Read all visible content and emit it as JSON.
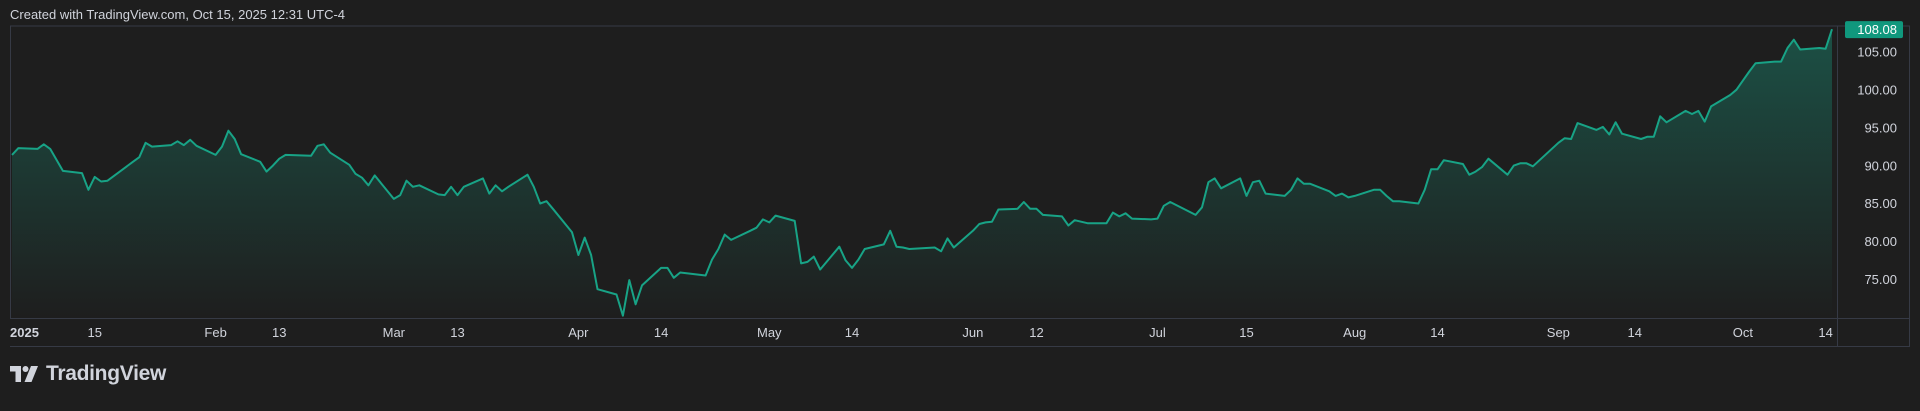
{
  "header": {
    "attribution": "Created with TradingView.com, Oct 15, 2025 12:31 UTC-4"
  },
  "footer": {
    "brand": "TradingView"
  },
  "colors": {
    "background": "#1e1e1e",
    "line": "#18a386",
    "price_badge": "#10987d",
    "axis_text": "#d1d4dc",
    "border": "#363a45"
  },
  "chart_data": {
    "type": "area",
    "last_price_label": "108.08",
    "ylim": [
      70,
      108.5
    ],
    "y_ticks": [
      {
        "value": 75,
        "label": "75.00"
      },
      {
        "value": 80,
        "label": "80.00"
      },
      {
        "value": 85,
        "label": "85.00"
      },
      {
        "value": 90,
        "label": "90.00"
      },
      {
        "value": 95,
        "label": "95.00"
      },
      {
        "value": 100,
        "label": "100.00"
      },
      {
        "value": 105,
        "label": "105.00"
      }
    ],
    "x_ticks": [
      {
        "date": "2025-01-02",
        "label": "2025",
        "bold": true
      },
      {
        "date": "2025-01-15",
        "label": "15"
      },
      {
        "date": "2025-02-03",
        "label": "Feb"
      },
      {
        "date": "2025-02-13",
        "label": "13"
      },
      {
        "date": "2025-03-03",
        "label": "Mar"
      },
      {
        "date": "2025-03-13",
        "label": "13"
      },
      {
        "date": "2025-04-01",
        "label": "Apr"
      },
      {
        "date": "2025-04-14",
        "label": "14"
      },
      {
        "date": "2025-05-01",
        "label": "May"
      },
      {
        "date": "2025-05-14",
        "label": "14"
      },
      {
        "date": "2025-06-02",
        "label": "Jun"
      },
      {
        "date": "2025-06-12",
        "label": "12"
      },
      {
        "date": "2025-07-01",
        "label": "Jul"
      },
      {
        "date": "2025-07-15",
        "label": "15"
      },
      {
        "date": "2025-08-01",
        "label": "Aug"
      },
      {
        "date": "2025-08-14",
        "label": "14"
      },
      {
        "date": "2025-09-02",
        "label": "Sep"
      },
      {
        "date": "2025-09-14",
        "label": "14"
      },
      {
        "date": "2025-10-01",
        "label": "Oct"
      },
      {
        "date": "2025-10-14",
        "label": "14"
      }
    ],
    "series": [
      {
        "points": [
          [
            "2025-01-02",
            91.5
          ],
          [
            "2025-01-03",
            92.4
          ],
          [
            "2025-01-06",
            92.3
          ],
          [
            "2025-01-07",
            92.9
          ],
          [
            "2025-01-08",
            92.3
          ],
          [
            "2025-01-10",
            89.4
          ],
          [
            "2025-01-13",
            89.1
          ],
          [
            "2025-01-14",
            86.9
          ],
          [
            "2025-01-15",
            88.6
          ],
          [
            "2025-01-16",
            88.0
          ],
          [
            "2025-01-17",
            88.1
          ],
          [
            "2025-01-21",
            90.6
          ],
          [
            "2025-01-22",
            91.2
          ],
          [
            "2025-01-23",
            93.1
          ],
          [
            "2025-01-24",
            92.6
          ],
          [
            "2025-01-27",
            92.8
          ],
          [
            "2025-01-28",
            93.3
          ],
          [
            "2025-01-29",
            92.8
          ],
          [
            "2025-01-30",
            93.5
          ],
          [
            "2025-01-31",
            92.7
          ],
          [
            "2025-02-03",
            91.5
          ],
          [
            "2025-02-04",
            92.6
          ],
          [
            "2025-02-05",
            94.7
          ],
          [
            "2025-02-06",
            93.6
          ],
          [
            "2025-02-07",
            91.6
          ],
          [
            "2025-02-10",
            90.6
          ],
          [
            "2025-02-11",
            89.3
          ],
          [
            "2025-02-12",
            90.1
          ],
          [
            "2025-02-13",
            91.0
          ],
          [
            "2025-02-14",
            91.5
          ],
          [
            "2025-02-18",
            91.4
          ],
          [
            "2025-02-19",
            92.7
          ],
          [
            "2025-02-20",
            92.9
          ],
          [
            "2025-02-21",
            91.8
          ],
          [
            "2025-02-24",
            90.2
          ],
          [
            "2025-02-25",
            89.0
          ],
          [
            "2025-02-26",
            88.5
          ],
          [
            "2025-02-27",
            87.5
          ],
          [
            "2025-02-28",
            88.8
          ],
          [
            "2025-03-03",
            85.7
          ],
          [
            "2025-03-04",
            86.2
          ],
          [
            "2025-03-05",
            88.1
          ],
          [
            "2025-03-06",
            87.3
          ],
          [
            "2025-03-07",
            87.5
          ],
          [
            "2025-03-10",
            86.3
          ],
          [
            "2025-03-11",
            86.2
          ],
          [
            "2025-03-12",
            87.3
          ],
          [
            "2025-03-13",
            86.2
          ],
          [
            "2025-03-14",
            87.3
          ],
          [
            "2025-03-17",
            88.4
          ],
          [
            "2025-03-18",
            86.4
          ],
          [
            "2025-03-19",
            87.5
          ],
          [
            "2025-03-20",
            86.7
          ],
          [
            "2025-03-21",
            87.3
          ],
          [
            "2025-03-24",
            88.9
          ],
          [
            "2025-03-25",
            87.3
          ],
          [
            "2025-03-26",
            85.1
          ],
          [
            "2025-03-27",
            85.4
          ],
          [
            "2025-03-28",
            84.4
          ],
          [
            "2025-03-31",
            81.3
          ],
          [
            "2025-04-01",
            78.3
          ],
          [
            "2025-04-02",
            80.6
          ],
          [
            "2025-04-03",
            78.3
          ],
          [
            "2025-04-04",
            73.8
          ],
          [
            "2025-04-07",
            73.1
          ],
          [
            "2025-04-08",
            70.3
          ],
          [
            "2025-04-09",
            75.0
          ],
          [
            "2025-04-10",
            71.8
          ],
          [
            "2025-04-11",
            74.3
          ],
          [
            "2025-04-14",
            76.6
          ],
          [
            "2025-04-15",
            76.6
          ],
          [
            "2025-04-16",
            75.3
          ],
          [
            "2025-04-17",
            76.0
          ],
          [
            "2025-04-21",
            75.6
          ],
          [
            "2025-04-22",
            77.7
          ],
          [
            "2025-04-23",
            79.1
          ],
          [
            "2025-04-24",
            81.0
          ],
          [
            "2025-04-25",
            80.3
          ],
          [
            "2025-04-28",
            81.5
          ],
          [
            "2025-04-29",
            81.9
          ],
          [
            "2025-04-30",
            83.0
          ],
          [
            "2025-05-01",
            82.6
          ],
          [
            "2025-05-02",
            83.5
          ],
          [
            "2025-05-05",
            82.8
          ],
          [
            "2025-05-06",
            77.2
          ],
          [
            "2025-05-07",
            77.4
          ],
          [
            "2025-05-08",
            78.1
          ],
          [
            "2025-05-09",
            76.4
          ],
          [
            "2025-05-12",
            79.4
          ],
          [
            "2025-05-13",
            77.6
          ],
          [
            "2025-05-14",
            76.6
          ],
          [
            "2025-05-15",
            77.7
          ],
          [
            "2025-05-16",
            79.1
          ],
          [
            "2025-05-19",
            79.7
          ],
          [
            "2025-05-20",
            81.5
          ],
          [
            "2025-05-21",
            79.4
          ],
          [
            "2025-05-22",
            79.3
          ],
          [
            "2025-05-23",
            79.1
          ],
          [
            "2025-05-27",
            79.3
          ],
          [
            "2025-05-28",
            78.8
          ],
          [
            "2025-05-29",
            80.5
          ],
          [
            "2025-05-30",
            79.3
          ],
          [
            "2025-06-02",
            81.5
          ],
          [
            "2025-06-03",
            82.4
          ],
          [
            "2025-06-04",
            82.6
          ],
          [
            "2025-06-05",
            82.7
          ],
          [
            "2025-06-06",
            84.3
          ],
          [
            "2025-06-09",
            84.4
          ],
          [
            "2025-06-10",
            85.3
          ],
          [
            "2025-06-11",
            84.4
          ],
          [
            "2025-06-12",
            84.4
          ],
          [
            "2025-06-13",
            83.6
          ],
          [
            "2025-06-16",
            83.4
          ],
          [
            "2025-06-17",
            82.2
          ],
          [
            "2025-06-18",
            82.9
          ],
          [
            "2025-06-20",
            82.5
          ],
          [
            "2025-06-23",
            82.5
          ],
          [
            "2025-06-24",
            83.9
          ],
          [
            "2025-06-25",
            83.4
          ],
          [
            "2025-06-26",
            83.8
          ],
          [
            "2025-06-27",
            83.1
          ],
          [
            "2025-06-30",
            83.0
          ],
          [
            "2025-07-01",
            83.1
          ],
          [
            "2025-07-02",
            84.8
          ],
          [
            "2025-07-03",
            85.3
          ],
          [
            "2025-07-07",
            83.6
          ],
          [
            "2025-07-08",
            84.6
          ],
          [
            "2025-07-09",
            87.9
          ],
          [
            "2025-07-10",
            88.4
          ],
          [
            "2025-07-11",
            87.1
          ],
          [
            "2025-07-14",
            88.4
          ],
          [
            "2025-07-15",
            86.1
          ],
          [
            "2025-07-16",
            87.9
          ],
          [
            "2025-07-17",
            88.1
          ],
          [
            "2025-07-18",
            86.4
          ],
          [
            "2025-07-21",
            86.1
          ],
          [
            "2025-07-22",
            86.9
          ],
          [
            "2025-07-23",
            88.4
          ],
          [
            "2025-07-24",
            87.7
          ],
          [
            "2025-07-25",
            87.7
          ],
          [
            "2025-07-28",
            86.7
          ],
          [
            "2025-07-29",
            86.1
          ],
          [
            "2025-07-30",
            86.4
          ],
          [
            "2025-07-31",
            85.9
          ],
          [
            "2025-08-01",
            86.1
          ],
          [
            "2025-08-04",
            86.9
          ],
          [
            "2025-08-05",
            86.9
          ],
          [
            "2025-08-06",
            86.1
          ],
          [
            "2025-08-07",
            85.4
          ],
          [
            "2025-08-08",
            85.4
          ],
          [
            "2025-08-11",
            85.1
          ],
          [
            "2025-08-12",
            86.9
          ],
          [
            "2025-08-13",
            89.6
          ],
          [
            "2025-08-14",
            89.6
          ],
          [
            "2025-08-15",
            90.8
          ],
          [
            "2025-08-18",
            90.3
          ],
          [
            "2025-08-19",
            88.9
          ],
          [
            "2025-08-20",
            89.3
          ],
          [
            "2025-08-21",
            89.9
          ],
          [
            "2025-08-22",
            91.0
          ],
          [
            "2025-08-25",
            88.9
          ],
          [
            "2025-08-26",
            90.1
          ],
          [
            "2025-08-27",
            90.4
          ],
          [
            "2025-08-28",
            90.4
          ],
          [
            "2025-08-29",
            90.0
          ],
          [
            "2025-09-02",
            93.1
          ],
          [
            "2025-09-03",
            93.7
          ],
          [
            "2025-09-04",
            93.6
          ],
          [
            "2025-09-05",
            95.7
          ],
          [
            "2025-09-08",
            94.8
          ],
          [
            "2025-09-09",
            95.2
          ],
          [
            "2025-09-10",
            94.2
          ],
          [
            "2025-09-11",
            95.8
          ],
          [
            "2025-09-12",
            94.3
          ],
          [
            "2025-09-15",
            93.6
          ],
          [
            "2025-09-16",
            93.9
          ],
          [
            "2025-09-17",
            93.9
          ],
          [
            "2025-09-18",
            96.6
          ],
          [
            "2025-09-19",
            95.8
          ],
          [
            "2025-09-22",
            97.3
          ],
          [
            "2025-09-23",
            96.9
          ],
          [
            "2025-09-24",
            97.3
          ],
          [
            "2025-09-25",
            95.9
          ],
          [
            "2025-09-26",
            97.9
          ],
          [
            "2025-09-29",
            99.4
          ],
          [
            "2025-09-30",
            100.1
          ],
          [
            "2025-10-01",
            101.3
          ],
          [
            "2025-10-02",
            102.5
          ],
          [
            "2025-10-03",
            103.6
          ],
          [
            "2025-10-06",
            103.8
          ],
          [
            "2025-10-07",
            103.8
          ],
          [
            "2025-10-08",
            105.6
          ],
          [
            "2025-10-09",
            106.7
          ],
          [
            "2025-10-10",
            105.4
          ],
          [
            "2025-10-13",
            105.6
          ],
          [
            "2025-10-14",
            105.5
          ],
          [
            "2025-10-15",
            108.08
          ]
        ]
      }
    ]
  }
}
